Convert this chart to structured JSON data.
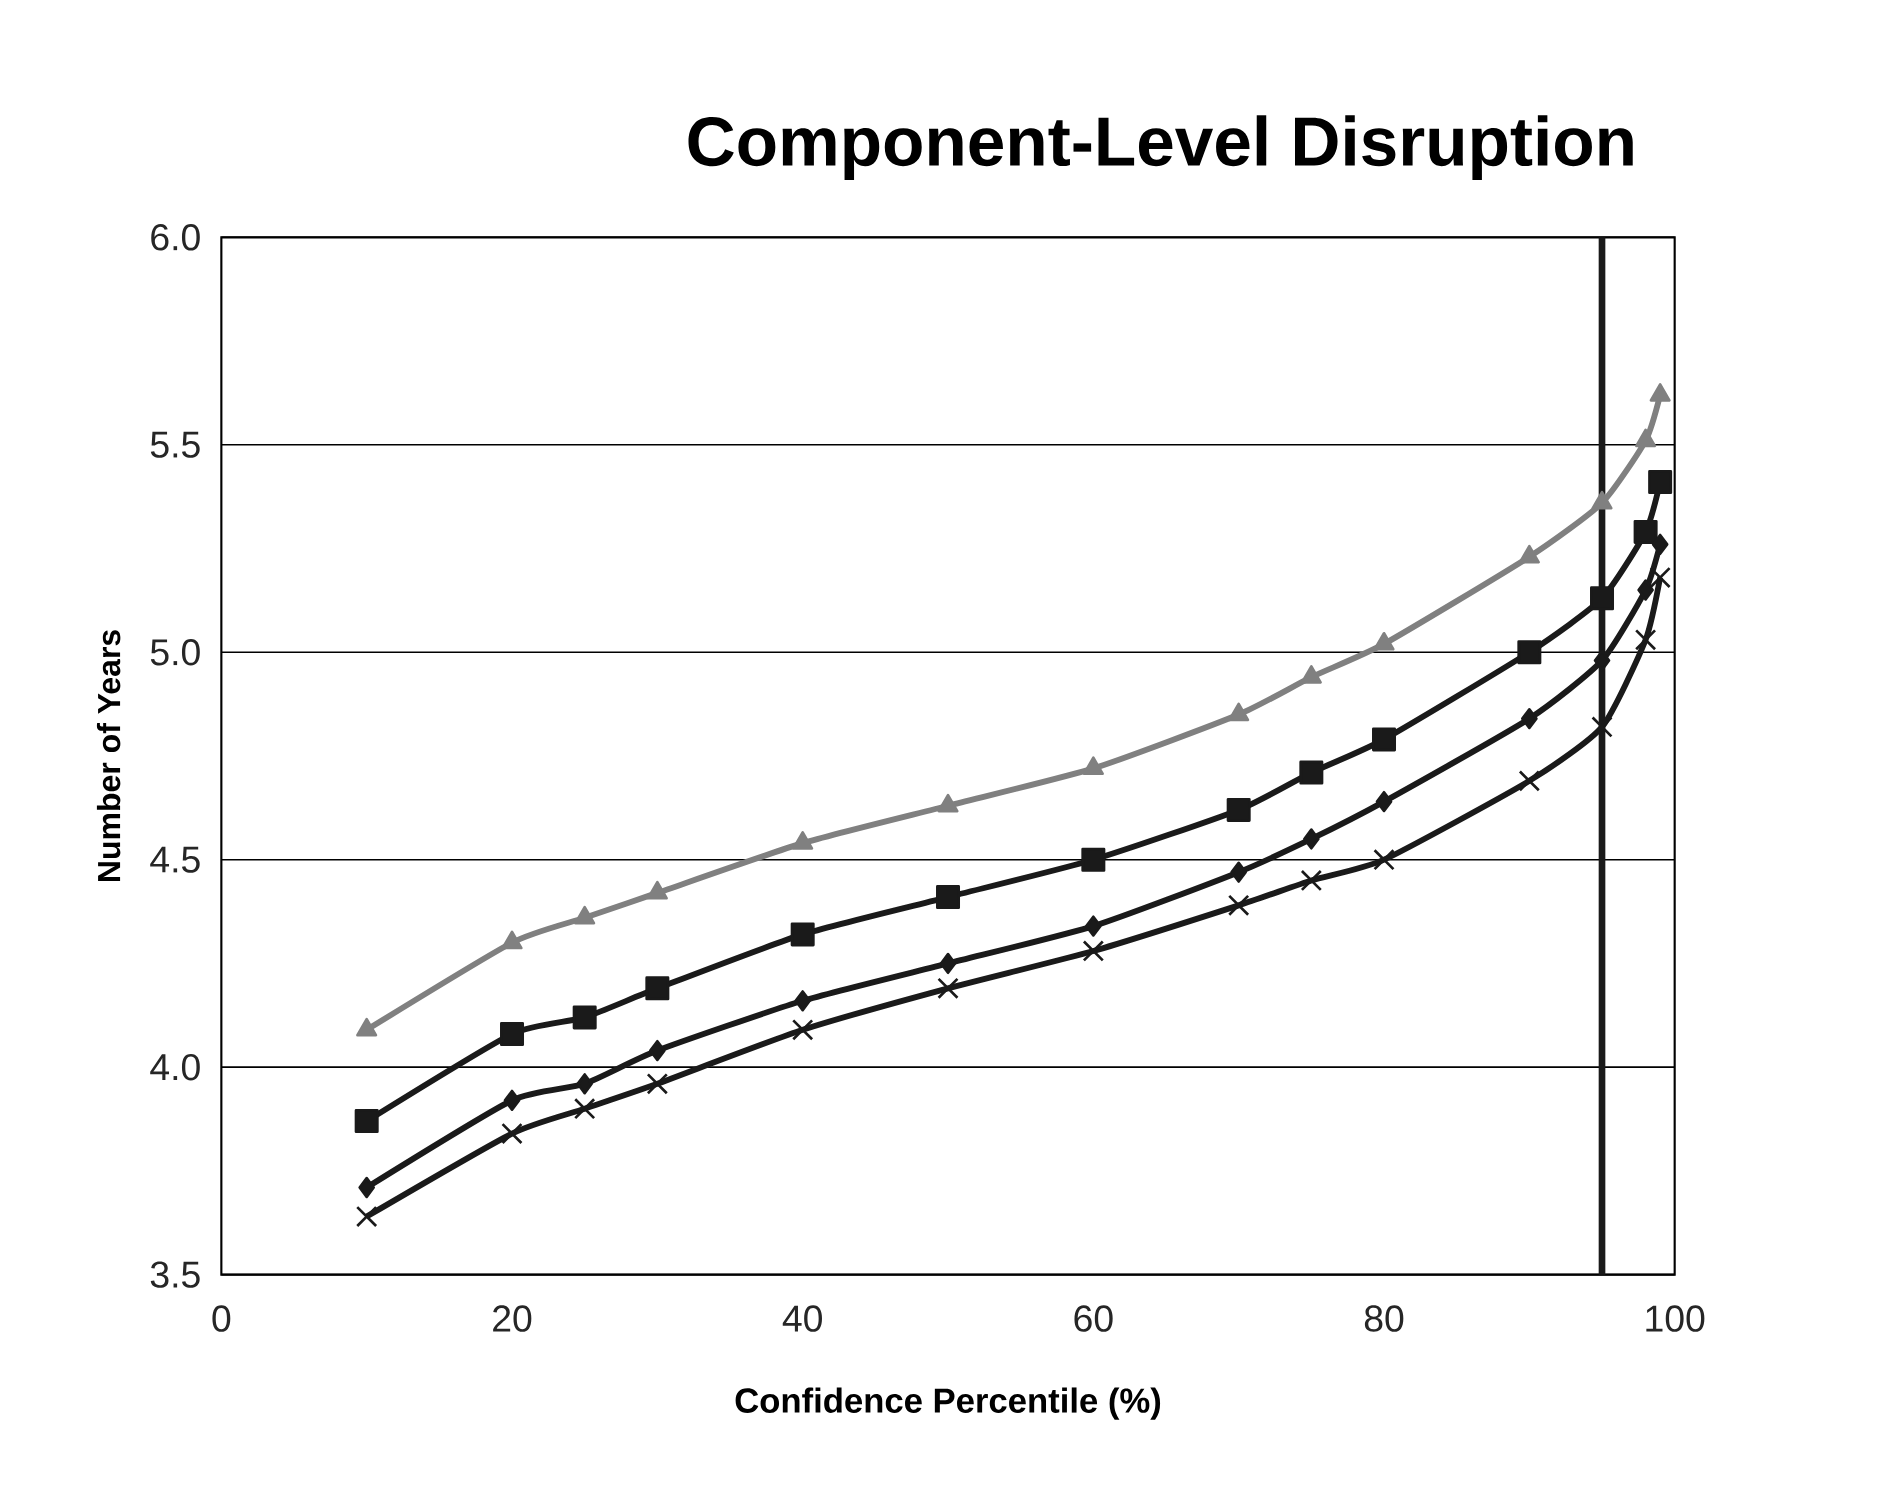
{
  "chart_data": {
    "type": "line",
    "title": "Component-Level Disruption",
    "xlabel": "Confidence Percentile (%)",
    "ylabel": "Number of Years",
    "x": [
      10,
      20,
      25,
      30,
      40,
      50,
      60,
      70,
      75,
      80,
      90,
      95,
      98,
      99
    ],
    "series": [
      {
        "color": "#808080",
        "marker": "triangle",
        "values": [
          4.09,
          4.3,
          4.36,
          4.42,
          4.54,
          4.63,
          4.72,
          4.85,
          4.94,
          5.02,
          5.23,
          5.36,
          5.51,
          5.62
        ]
      },
      {
        "color": "#1a1a1a",
        "marker": "square",
        "values": [
          3.87,
          4.08,
          4.12,
          4.19,
          4.32,
          4.41,
          4.5,
          4.62,
          4.71,
          4.79,
          5.0,
          5.13,
          5.29,
          5.41
        ]
      },
      {
        "color": "#1a1a1a",
        "marker": "diamond",
        "values": [
          3.71,
          3.92,
          3.96,
          4.04,
          4.16,
          4.25,
          4.34,
          4.47,
          4.55,
          4.64,
          4.84,
          4.98,
          5.15,
          5.26
        ]
      },
      {
        "color": "#1a1a1a",
        "marker": "cross",
        "values": [
          3.64,
          3.84,
          3.9,
          3.96,
          4.09,
          4.19,
          4.28,
          4.39,
          4.45,
          4.5,
          4.69,
          4.82,
          5.03,
          5.18
        ]
      }
    ],
    "xlim": [
      0,
      100
    ],
    "xticks": [
      0,
      20,
      40,
      60,
      80,
      100
    ],
    "ylim": [
      3.5,
      6.0
    ],
    "yticks": [
      {
        "value": 3.5,
        "label": "3.5"
      },
      {
        "value": 4.0,
        "label": "4.0"
      },
      {
        "value": 4.5,
        "label": "4.5"
      },
      {
        "value": 5.0,
        "label": "5.0"
      },
      {
        "value": 5.5,
        "label": "5.5"
      },
      {
        "value": 6.0,
        "label": "6.0"
      }
    ],
    "grid": "y",
    "ref_lines": [
      {
        "axis": "x",
        "value": 95,
        "color": "#1a1a1a"
      }
    ]
  }
}
